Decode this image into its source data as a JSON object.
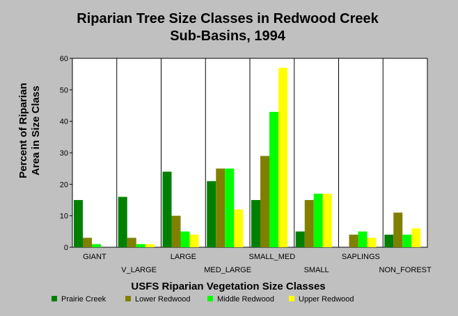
{
  "chart_data": {
    "type": "bar",
    "title_lines": [
      "Riparian Tree Size Classes in Redwood Creek",
      "Sub-Basins, 1994"
    ],
    "xlabel": "USFS Riparian Vegetation Size Classes",
    "ylabel_lines": [
      "Percent of Riparian",
      "Area in Size Class"
    ],
    "ylim": [
      0,
      60
    ],
    "yticks": [
      "0",
      "10",
      "20",
      "30",
      "40",
      "50",
      "60"
    ],
    "grid": "vertical-category-dividers",
    "legend_position": "bottom",
    "categories": [
      "GIANT",
      "V_LARGE",
      "LARGE",
      "MED_LARGE",
      "SMALL_MED",
      "SMALL",
      "SAPLINGS",
      "NON_FOREST"
    ],
    "series": [
      {
        "name": "Prairie Creek",
        "color": "#008000",
        "values": [
          15,
          16,
          24,
          21,
          15,
          5,
          0,
          4
        ]
      },
      {
        "name": "Lower Redwood",
        "color": "#808000",
        "values": [
          3,
          3,
          10,
          25,
          29,
          15,
          4,
          11
        ]
      },
      {
        "name": "Middle Redwood",
        "color": "#00ff00",
        "values": [
          1,
          1,
          5,
          25,
          43,
          17,
          5,
          4
        ]
      },
      {
        "name": "Upper Redwood",
        "color": "#ffff00",
        "values": [
          0,
          1,
          4,
          12,
          57,
          17,
          3,
          6
        ]
      }
    ]
  }
}
